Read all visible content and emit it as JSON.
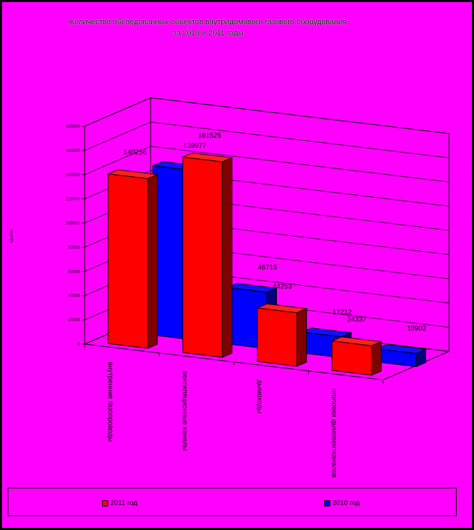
{
  "chart_data": {
    "type": "bar",
    "title_lines": [
      "Количество обследованных объектов внутридомового газового оборудования",
      "за 2010 и 2011 годы"
    ],
    "ylabel": "ед.изм.",
    "categories": [
      "внутренние газопроводы",
      "вентиляционные каналы",
      "дымоходы",
      "оголовки дымовентканалов"
    ],
    "series": [
      {
        "name": "2011 год",
        "color": "#ff0000",
        "values": [
          140256,
          161525,
          44253,
          24337
        ]
      },
      {
        "name": "2010 год",
        "color": "#0000ff",
        "values": [
          139977,
          46715,
          17212,
          10902
        ]
      }
    ],
    "yticks": [
      0,
      20000,
      40000,
      60000,
      80000,
      100000,
      120000,
      140000,
      160000,
      180000
    ],
    "ytick_labels": [
      "0",
      "20000",
      "40000",
      "60000",
      "80000",
      "100000",
      "120000",
      "140000",
      "160000",
      "180000"
    ],
    "ylim": [
      0,
      180000
    ],
    "grid": true,
    "legend_position": "bottom"
  },
  "colors": {
    "background": "#ff00ff",
    "frame": "#000000",
    "red_front": "#ff0000",
    "red_side": "#800000",
    "blue_front": "#0000ff",
    "blue_side": "#000080"
  }
}
